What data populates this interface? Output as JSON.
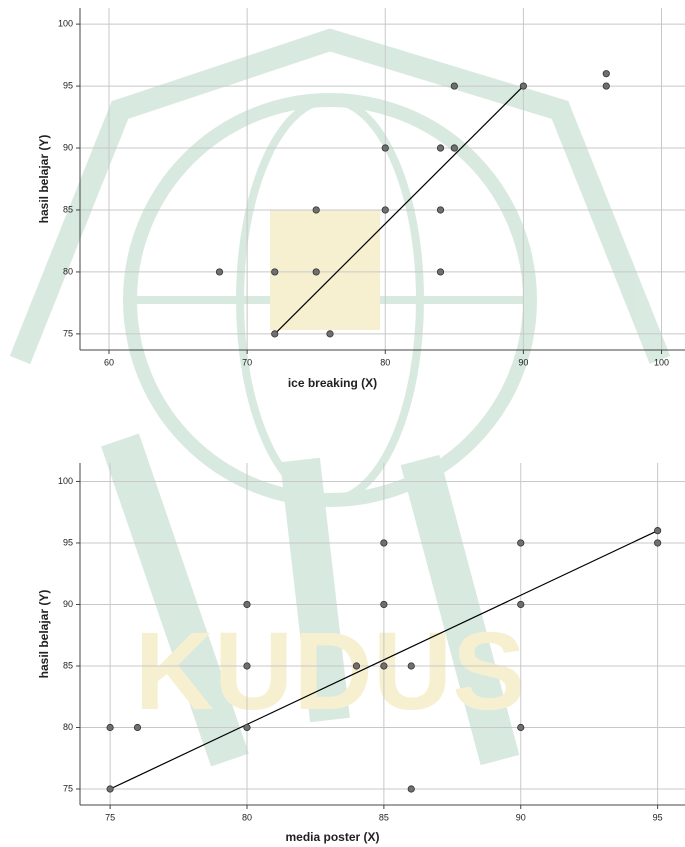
{
  "chart_data": [
    {
      "type": "scatter",
      "x_label": "ice breaking (X)",
      "y_label": "hasil belajar (Y)",
      "xlim": [
        57.9,
        101.7
      ],
      "xticks": [
        60,
        70,
        80,
        90,
        100
      ],
      "ylim": [
        73.7,
        101.3
      ],
      "yticks": [
        75,
        80,
        85,
        90,
        95,
        100
      ],
      "grid": true,
      "color": "#6f6f6f",
      "points": {
        "x": [
          68,
          72,
          72,
          75,
          75,
          76,
          80,
          80,
          84,
          84,
          84,
          85,
          85,
          90,
          96,
          96
        ],
        "y": [
          80,
          80,
          75,
          85,
          80,
          75,
          90,
          85,
          90,
          85,
          80,
          95,
          90,
          95,
          96,
          95
        ]
      },
      "fit_line": {
        "x": [
          72,
          90
        ],
        "y": [
          75,
          95
        ]
      }
    },
    {
      "type": "scatter",
      "x_label": "media poster (X)",
      "y_label": "hasil belajar (Y)",
      "xlim": [
        73.9,
        96
      ],
      "xticks": [
        75,
        80,
        85,
        90,
        95
      ],
      "ylim": [
        73.7,
        101.5
      ],
      "yticks": [
        75,
        80,
        85,
        90,
        95,
        100
      ],
      "grid": true,
      "color": "#6f6f6f",
      "points": {
        "x": [
          75,
          75,
          76,
          80,
          80,
          80,
          84,
          85,
          85,
          85,
          86,
          86,
          90,
          90,
          90,
          95,
          95
        ],
        "y": [
          80,
          75,
          80,
          90,
          85,
          80,
          85,
          95,
          90,
          85,
          85,
          75,
          95,
          90,
          80,
          96,
          95
        ]
      },
      "fit_line": {
        "x": [
          75,
          95
        ],
        "y": [
          75,
          96
        ]
      }
    }
  ]
}
